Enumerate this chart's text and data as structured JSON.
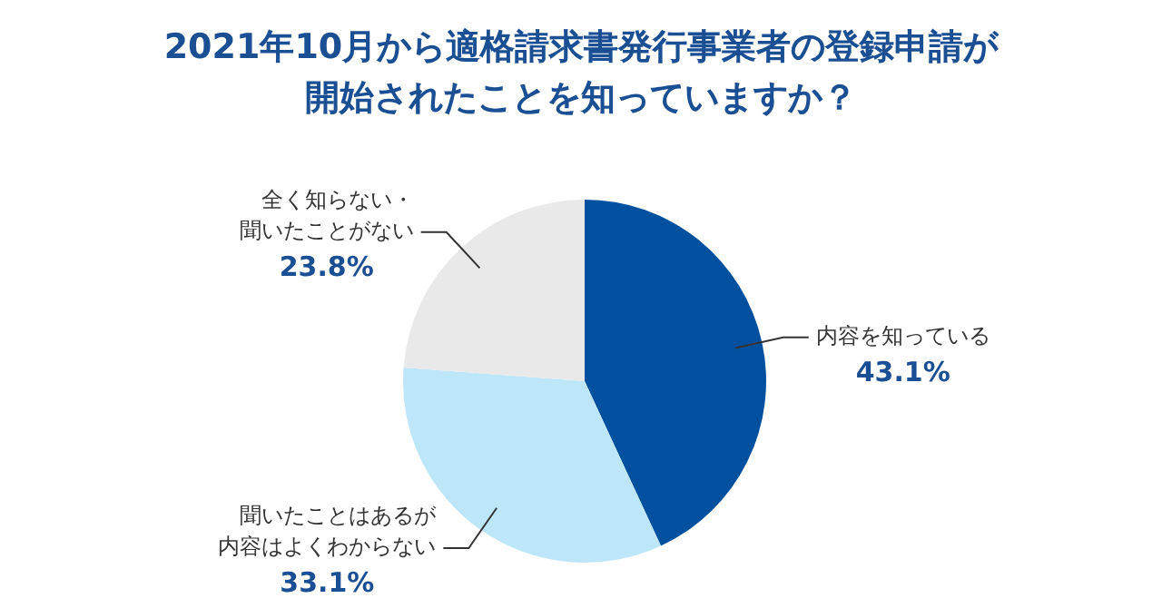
{
  "chart_data": {
    "type": "pie",
    "title": "2021年10月から適格請求書発行事業者の登録申請が開始されたことを知っていますか？",
    "categories": [
      "内容を知っている",
      "聞いたことはあるが内容はよくわからない",
      "全く知らない・聞いたことがない"
    ],
    "values": [
      43.1,
      33.1,
      23.8
    ],
    "colors": [
      "#0050a0",
      "#bde6f9",
      "#e9e9e9"
    ],
    "value_labels": [
      "43.1%",
      "33.1%",
      "23.8%"
    ],
    "legend": false
  }
}
